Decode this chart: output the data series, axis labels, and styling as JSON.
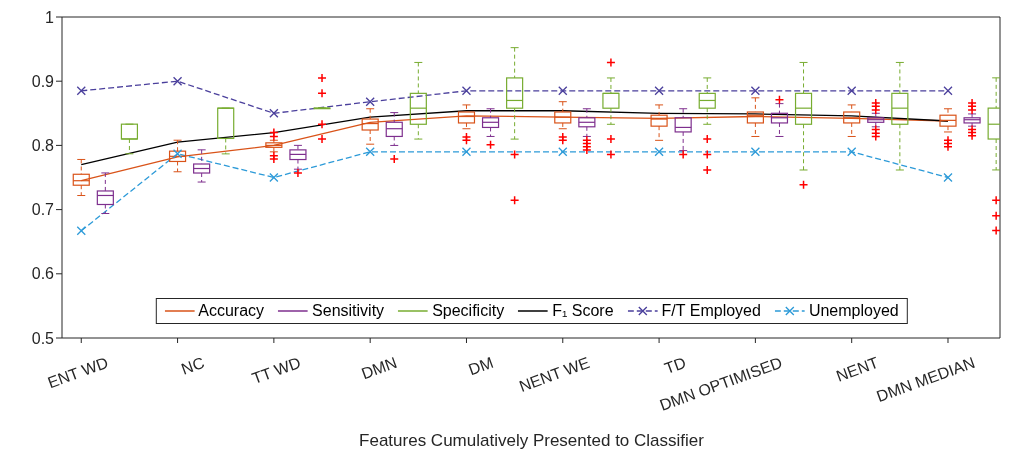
{
  "chart_data": {
    "type": "box",
    "xlabel": "Features Cumulatively Presented to Classifier",
    "categories": [
      "ENT WD",
      "NC",
      "TT WD",
      "DMN",
      "DM",
      "NENT WE",
      "TD",
      "DMN OPTIMISED",
      "NENT",
      "DMN MEDIAN"
    ],
    "ylim": [
      0.5,
      1
    ],
    "yticks": [
      0.5,
      0.6,
      0.7,
      0.8,
      0.9,
      1
    ],
    "grid": false,
    "legend": "bottom",
    "series": [
      {
        "name": "Accuracy",
        "color": "#d95319",
        "boxes": [
          {
            "low": 0.722,
            "q1": 0.738,
            "median": 0.745,
            "q3": 0.755,
            "high": 0.778
          },
          {
            "low": 0.759,
            "q1": 0.775,
            "median": 0.783,
            "q3": 0.791,
            "high": 0.808
          },
          {
            "low": 0.79,
            "q1": 0.797,
            "median": 0.8,
            "q3": 0.804,
            "high": 0.808,
            "outliers": [
              0.82,
              0.814,
              0.784,
              0.779
            ]
          },
          {
            "low": 0.802,
            "q1": 0.824,
            "median": 0.834,
            "q3": 0.841,
            "high": 0.857
          },
          {
            "low": 0.826,
            "q1": 0.835,
            "median": 0.845,
            "q3": 0.852,
            "high": 0.863,
            "outliers": [
              0.813,
              0.808
            ]
          },
          {
            "low": 0.826,
            "q1": 0.835,
            "median": 0.844,
            "q3": 0.852,
            "high": 0.868,
            "outliers": [
              0.813,
              0.808
            ]
          },
          {
            "low": 0.808,
            "q1": 0.83,
            "median": 0.841,
            "q3": 0.847,
            "high": 0.863
          },
          {
            "low": 0.814,
            "q1": 0.835,
            "median": 0.847,
            "q3": 0.852,
            "high": 0.874
          },
          {
            "low": 0.814,
            "q1": 0.835,
            "median": 0.843,
            "q3": 0.852,
            "high": 0.863
          },
          {
            "low": 0.821,
            "q1": 0.83,
            "median": 0.839,
            "q3": 0.847,
            "high": 0.857,
            "outliers": [
              0.808,
              0.803,
              0.798
            ]
          }
        ]
      },
      {
        "name": "Sensitivity",
        "color": "#7e2f8e",
        "boxes": [
          {
            "low": 0.694,
            "q1": 0.708,
            "median": 0.722,
            "q3": 0.729,
            "high": 0.757
          },
          {
            "low": 0.743,
            "q1": 0.757,
            "median": 0.764,
            "q3": 0.771,
            "high": 0.793
          },
          {
            "low": 0.763,
            "q1": 0.778,
            "median": 0.786,
            "q3": 0.793,
            "high": 0.8,
            "outliers": [
              0.757
            ]
          },
          {
            "low": 0.8,
            "q1": 0.814,
            "median": 0.826,
            "q3": 0.836,
            "high": 0.851,
            "outliers": [
              0.779
            ]
          },
          {
            "low": 0.814,
            "q1": 0.828,
            "median": 0.836,
            "q3": 0.843,
            "high": 0.857,
            "outliers": [
              0.801
            ]
          },
          {
            "low": 0.814,
            "q1": 0.829,
            "median": 0.836,
            "q3": 0.843,
            "high": 0.857,
            "outliers": [
              0.808,
              0.803,
              0.798,
              0.793
            ]
          },
          {
            "low": 0.792,
            "q1": 0.821,
            "median": 0.828,
            "q3": 0.843,
            "high": 0.857,
            "outliers": [
              0.786
            ]
          },
          {
            "low": 0.814,
            "q1": 0.835,
            "median": 0.843,
            "q3": 0.85,
            "high": 0.865,
            "outliers": [
              0.871
            ]
          },
          {
            "low": 0.829,
            "q1": 0.836,
            "median": 0.84,
            "q3": 0.843,
            "high": 0.85,
            "outliers": [
              0.866,
              0.861,
              0.855,
              0.825,
              0.819,
              0.814
            ]
          },
          {
            "low": 0.83,
            "q1": 0.835,
            "median": 0.84,
            "q3": 0.843,
            "high": 0.849,
            "outliers": [
              0.866,
              0.861,
              0.855,
              0.825,
              0.82,
              0.815
            ]
          }
        ]
      },
      {
        "name": "Specificity",
        "color": "#77ac30",
        "boxes": [
          {
            "low": 0.787,
            "q1": 0.81,
            "median": 0.81,
            "q3": 0.833,
            "high": 0.833
          },
          {
            "low": 0.787,
            "q1": 0.811,
            "median": 0.858,
            "q3": 0.858,
            "high": 0.858
          },
          {
            "low": 0.858,
            "q1": 0.858,
            "median": 0.858,
            "q3": 0.858,
            "high": 0.858,
            "outliers": [
              0.905,
              0.881,
              0.833,
              0.81
            ]
          },
          {
            "low": 0.81,
            "q1": 0.833,
            "median": 0.858,
            "q3": 0.881,
            "high": 0.929
          },
          {
            "low": 0.81,
            "q1": 0.858,
            "median": 0.87,
            "q3": 0.905,
            "high": 0.952,
            "outliers": [
              0.786,
              0.715
            ]
          },
          {
            "low": 0.833,
            "q1": 0.858,
            "median": 0.881,
            "q3": 0.881,
            "high": 0.905,
            "outliers": [
              0.929,
              0.81,
              0.786
            ]
          },
          {
            "low": 0.833,
            "q1": 0.858,
            "median": 0.87,
            "q3": 0.881,
            "high": 0.905,
            "outliers": [
              0.81,
              0.786,
              0.762
            ]
          },
          {
            "low": 0.762,
            "q1": 0.833,
            "median": 0.858,
            "q3": 0.881,
            "high": 0.929,
            "outliers": [
              0.739
            ]
          },
          {
            "low": 0.762,
            "q1": 0.833,
            "median": 0.858,
            "q3": 0.881,
            "high": 0.929
          },
          {
            "low": 0.762,
            "q1": 0.81,
            "median": 0.833,
            "q3": 0.858,
            "high": 0.905,
            "outliers": [
              0.715,
              0.691,
              0.668
            ]
          }
        ]
      },
      {
        "type": "line",
        "color": "#d95319",
        "line_style": "solid",
        "marker": "none",
        "values": [
          0.745,
          0.782,
          0.8,
          0.836,
          0.846,
          0.844,
          0.842,
          0.845,
          0.842,
          0.838
        ]
      },
      {
        "type": "line",
        "name": "F₁ Score",
        "color": "#000000",
        "line_style": "solid",
        "marker": "none",
        "values": [
          0.77,
          0.805,
          0.82,
          0.844,
          0.854,
          0.854,
          0.85,
          0.849,
          0.846,
          0.838
        ]
      },
      {
        "type": "line",
        "name": "F/T Employed",
        "color": "#4a3f9c",
        "line_style": "dashed",
        "marker": "cross",
        "values": [
          0.885,
          0.9,
          0.85,
          0.868,
          0.885,
          0.885,
          0.885,
          0.885,
          0.885,
          0.885
        ]
      },
      {
        "type": "line",
        "name": "Unemployed",
        "color": "#2c9ad8",
        "line_style": "dashed",
        "marker": "cross",
        "values": [
          0.667,
          0.787,
          0.75,
          0.79,
          0.79,
          0.79,
          0.79,
          0.79,
          0.79,
          0.75
        ]
      }
    ]
  }
}
